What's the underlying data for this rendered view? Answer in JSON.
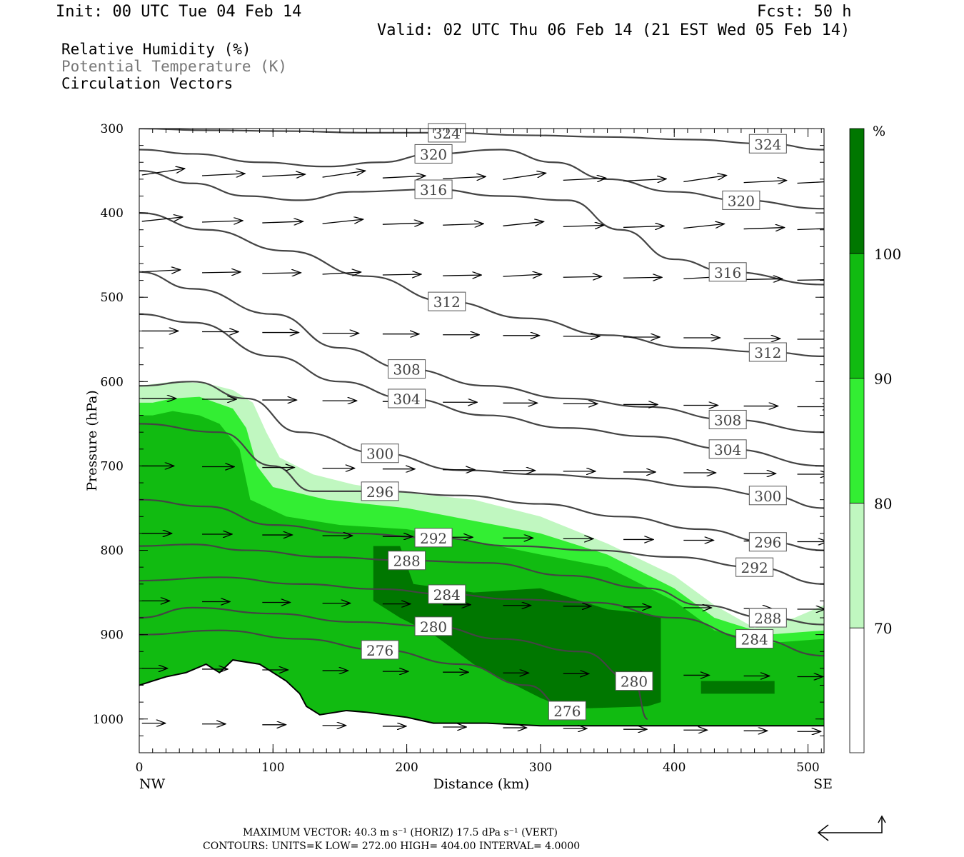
{
  "header": {
    "init": "Init: 00 UTC Tue 04 Feb 14",
    "fcst": "Fcst:   50 h",
    "valid": "Valid: 02 UTC Thu 06 Feb 14 (21 EST Wed 05 Feb 14)"
  },
  "legend": {
    "rh": "Relative Humidity (%)",
    "theta": "Potential Temperature (K)",
    "vectors": "Circulation Vectors"
  },
  "footer": {
    "max_vector": "MAXIMUM VECTOR:  40.3 m s⁻¹ (HORIZ)          17.5 dPa s⁻¹ (VERT)",
    "contours": "CONTOURS:  UNITS=K  LOW=  272.00       HIGH=  404.00       INTERVAL=    4.0000"
  },
  "colors": {
    "rh_70_80": "#c0f7c0",
    "rh_80_90": "#33ee33",
    "rh_90_100": "#11bb11",
    "rh_100": "#007700",
    "contour": "#444444"
  },
  "chart_data": {
    "type": "cross-section",
    "title": "",
    "xlabel": "Distance (km)",
    "ylabel": "Pressure (hPa)",
    "xlim": [
      0,
      512
    ],
    "ylim": [
      300,
      1040
    ],
    "x_ticks": [
      0,
      100,
      200,
      300,
      400,
      500
    ],
    "y_ticks": [
      300,
      400,
      500,
      600,
      700,
      800,
      900,
      1000
    ],
    "x_end_labels": {
      "left": "NW",
      "right": "SE"
    },
    "colorbar": {
      "unit": "%",
      "levels": [
        70,
        80,
        90,
        100
      ]
    },
    "rh_bands": [
      {
        "min": 70,
        "max": 80,
        "top": [
          [
            0,
            605
          ],
          [
            10,
            603
          ],
          [
            25,
            600
          ],
          [
            50,
            602
          ],
          [
            70,
            610
          ],
          [
            85,
            625
          ],
          [
            95,
            660
          ],
          [
            105,
            690
          ],
          [
            130,
            710
          ],
          [
            160,
            722
          ],
          [
            200,
            732
          ],
          [
            250,
            740
          ],
          [
            300,
            760
          ],
          [
            350,
            792
          ],
          [
            400,
            830
          ],
          [
            430,
            865
          ],
          [
            460,
            892
          ],
          [
            490,
            880
          ],
          [
            512,
            865
          ]
        ]
      },
      {
        "min": 80,
        "max": 90,
        "top": [
          [
            0,
            625
          ],
          [
            10,
            625
          ],
          [
            25,
            620
          ],
          [
            45,
            618
          ],
          [
            70,
            632
          ],
          [
            80,
            655
          ],
          [
            88,
            700
          ],
          [
            100,
            725
          ],
          [
            140,
            740
          ],
          [
            200,
            750
          ],
          [
            250,
            765
          ],
          [
            300,
            780
          ],
          [
            350,
            805
          ],
          [
            400,
            845
          ],
          [
            430,
            880
          ],
          [
            470,
            900
          ],
          [
            512,
            895
          ]
        ]
      },
      {
        "min": 90,
        "max": 100,
        "top": [
          [
            0,
            640
          ],
          [
            10,
            640
          ],
          [
            25,
            635
          ],
          [
            45,
            640
          ],
          [
            60,
            650
          ],
          [
            75,
            680
          ],
          [
            83,
            740
          ],
          [
            110,
            760
          ],
          [
            150,
            770
          ],
          [
            200,
            775
          ],
          [
            260,
            792
          ],
          [
            300,
            805
          ],
          [
            350,
            820
          ],
          [
            400,
            860
          ],
          [
            430,
            895
          ],
          [
            470,
            910
          ],
          [
            512,
            905
          ]
        ]
      },
      {
        "min": 100,
        "max": 110,
        "top": [
          [
            175,
            795
          ],
          [
            195,
            795
          ],
          [
            205,
            840
          ],
          [
            250,
            850
          ],
          [
            300,
            845
          ],
          [
            350,
            870
          ],
          [
            380,
            875
          ],
          [
            390,
            880
          ],
          [
            390,
            980
          ],
          [
            380,
            985
          ],
          [
            320,
            988
          ],
          [
            300,
            975
          ],
          [
            250,
            935
          ],
          [
            220,
            900
          ],
          [
            195,
            880
          ],
          [
            175,
            860
          ],
          [
            175,
            795
          ]
        ]
      }
    ],
    "theta_contours": [
      {
        "level": 276,
        "points": [
          [
            0,
            900
          ],
          [
            60,
            895
          ],
          [
            120,
            905
          ],
          [
            180,
            918
          ],
          [
            240,
            935
          ],
          [
            290,
            960
          ],
          [
            320,
            990
          ],
          [
            330,
            1000
          ]
        ]
      },
      {
        "level": 280,
        "points": [
          [
            0,
            880
          ],
          [
            40,
            868
          ],
          [
            100,
            875
          ],
          [
            160,
            885
          ],
          [
            220,
            890
          ],
          [
            270,
            905
          ],
          [
            330,
            920
          ],
          [
            370,
            955
          ],
          [
            380,
            1000
          ]
        ]
      },
      {
        "level": 284,
        "points": [
          [
            0,
            836
          ],
          [
            60,
            832
          ],
          [
            120,
            840
          ],
          [
            180,
            846
          ],
          [
            230,
            852
          ],
          [
            280,
            858
          ],
          [
            340,
            862
          ],
          [
            400,
            880
          ],
          [
            460,
            905
          ],
          [
            512,
            925
          ]
        ]
      },
      {
        "level": 288,
        "points": [
          [
            0,
            795
          ],
          [
            40,
            793
          ],
          [
            80,
            800
          ],
          [
            140,
            808
          ],
          [
            200,
            812
          ],
          [
            260,
            815
          ],
          [
            320,
            830
          ],
          [
            380,
            845
          ],
          [
            420,
            865
          ],
          [
            470,
            880
          ],
          [
            512,
            888
          ]
        ]
      },
      {
        "level": 292,
        "points": [
          [
            0,
            740
          ],
          [
            50,
            748
          ],
          [
            100,
            770
          ],
          [
            160,
            780
          ],
          [
            220,
            785
          ],
          [
            280,
            795
          ],
          [
            340,
            800
          ],
          [
            400,
            808
          ],
          [
            460,
            820
          ],
          [
            512,
            840
          ]
        ]
      },
      {
        "level": 296,
        "points": [
          [
            0,
            650
          ],
          [
            60,
            660
          ],
          [
            100,
            700
          ],
          [
            130,
            730
          ],
          [
            180,
            730
          ],
          [
            240,
            735
          ],
          [
            300,
            745
          ],
          [
            360,
            760
          ],
          [
            420,
            775
          ],
          [
            470,
            790
          ],
          [
            512,
            800
          ]
        ]
      },
      {
        "level": 300,
        "points": [
          [
            0,
            605
          ],
          [
            40,
            600
          ],
          [
            80,
            620
          ],
          [
            120,
            660
          ],
          [
            180,
            685
          ],
          [
            240,
            705
          ],
          [
            300,
            710
          ],
          [
            360,
            715
          ],
          [
            420,
            725
          ],
          [
            470,
            735
          ],
          [
            512,
            750
          ]
        ]
      },
      {
        "level": 304,
        "points": [
          [
            0,
            520
          ],
          [
            40,
            530
          ],
          [
            100,
            570
          ],
          [
            150,
            600
          ],
          [
            200,
            620
          ],
          [
            260,
            640
          ],
          [
            320,
            655
          ],
          [
            380,
            665
          ],
          [
            440,
            680
          ],
          [
            512,
            700
          ]
        ]
      },
      {
        "level": 308,
        "points": [
          [
            0,
            470
          ],
          [
            40,
            490
          ],
          [
            100,
            520
          ],
          [
            150,
            560
          ],
          [
            200,
            585
          ],
          [
            260,
            605
          ],
          [
            320,
            620
          ],
          [
            380,
            630
          ],
          [
            440,
            645
          ],
          [
            512,
            660
          ]
        ]
      },
      {
        "level": 312,
        "points": [
          [
            0,
            400
          ],
          [
            50,
            420
          ],
          [
            110,
            445
          ],
          [
            170,
            475
          ],
          [
            230,
            505
          ],
          [
            290,
            525
          ],
          [
            350,
            545
          ],
          [
            410,
            560
          ],
          [
            470,
            565
          ],
          [
            512,
            570
          ]
        ]
      },
      {
        "level": 316,
        "points": [
          [
            0,
            350
          ],
          [
            40,
            365
          ],
          [
            80,
            380
          ],
          [
            120,
            385
          ],
          [
            160,
            375
          ],
          [
            220,
            372
          ],
          [
            270,
            380
          ],
          [
            320,
            385
          ],
          [
            360,
            420
          ],
          [
            400,
            455
          ],
          [
            440,
            470
          ],
          [
            512,
            485
          ]
        ]
      },
      {
        "level": 320,
        "points": [
          [
            0,
            325
          ],
          [
            40,
            330
          ],
          [
            90,
            340
          ],
          [
            140,
            345
          ],
          [
            180,
            340
          ],
          [
            220,
            330
          ],
          [
            270,
            325
          ],
          [
            310,
            340
          ],
          [
            350,
            360
          ],
          [
            400,
            375
          ],
          [
            450,
            385
          ],
          [
            512,
            395
          ]
        ]
      },
      {
        "level": 324,
        "points": [
          [
            0,
            300
          ],
          [
            50,
            302
          ],
          [
            110,
            303
          ],
          [
            170,
            305
          ],
          [
            230,
            305
          ],
          [
            290,
            308
          ],
          [
            350,
            310
          ],
          [
            410,
            313
          ],
          [
            470,
            318
          ],
          [
            512,
            325
          ]
        ]
      }
    ]
  }
}
